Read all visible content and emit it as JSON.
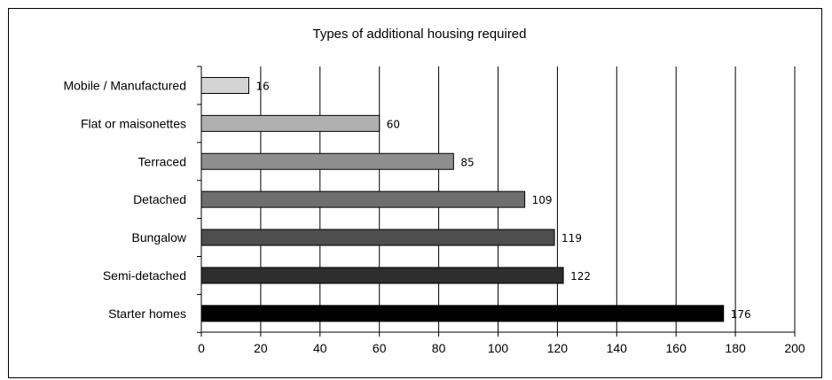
{
  "chart_data": {
    "type": "bar",
    "orientation": "horizontal",
    "title": "Types of additional housing required",
    "xlabel": "",
    "ylabel": "",
    "categories": [
      "Mobile / Manufactured",
      "Flat or maisonettes",
      "Terraced",
      "Detached",
      "Bungalow",
      "Semi-detached",
      "Starter homes"
    ],
    "values": [
      16,
      60,
      85,
      109,
      119,
      122,
      176
    ],
    "xlim": [
      0,
      200
    ],
    "x_ticks": [
      "0",
      "20",
      "40",
      "60",
      "80",
      "100",
      "120",
      "140",
      "160",
      "180",
      "200"
    ],
    "bar_colors": [
      "#d4d4d4",
      "#b0b0b0",
      "#8e8e8e",
      "#6e6e6e",
      "#4e4e4e",
      "#2e2e2e",
      "#000000"
    ],
    "grid": "vertical",
    "legend": "none"
  }
}
